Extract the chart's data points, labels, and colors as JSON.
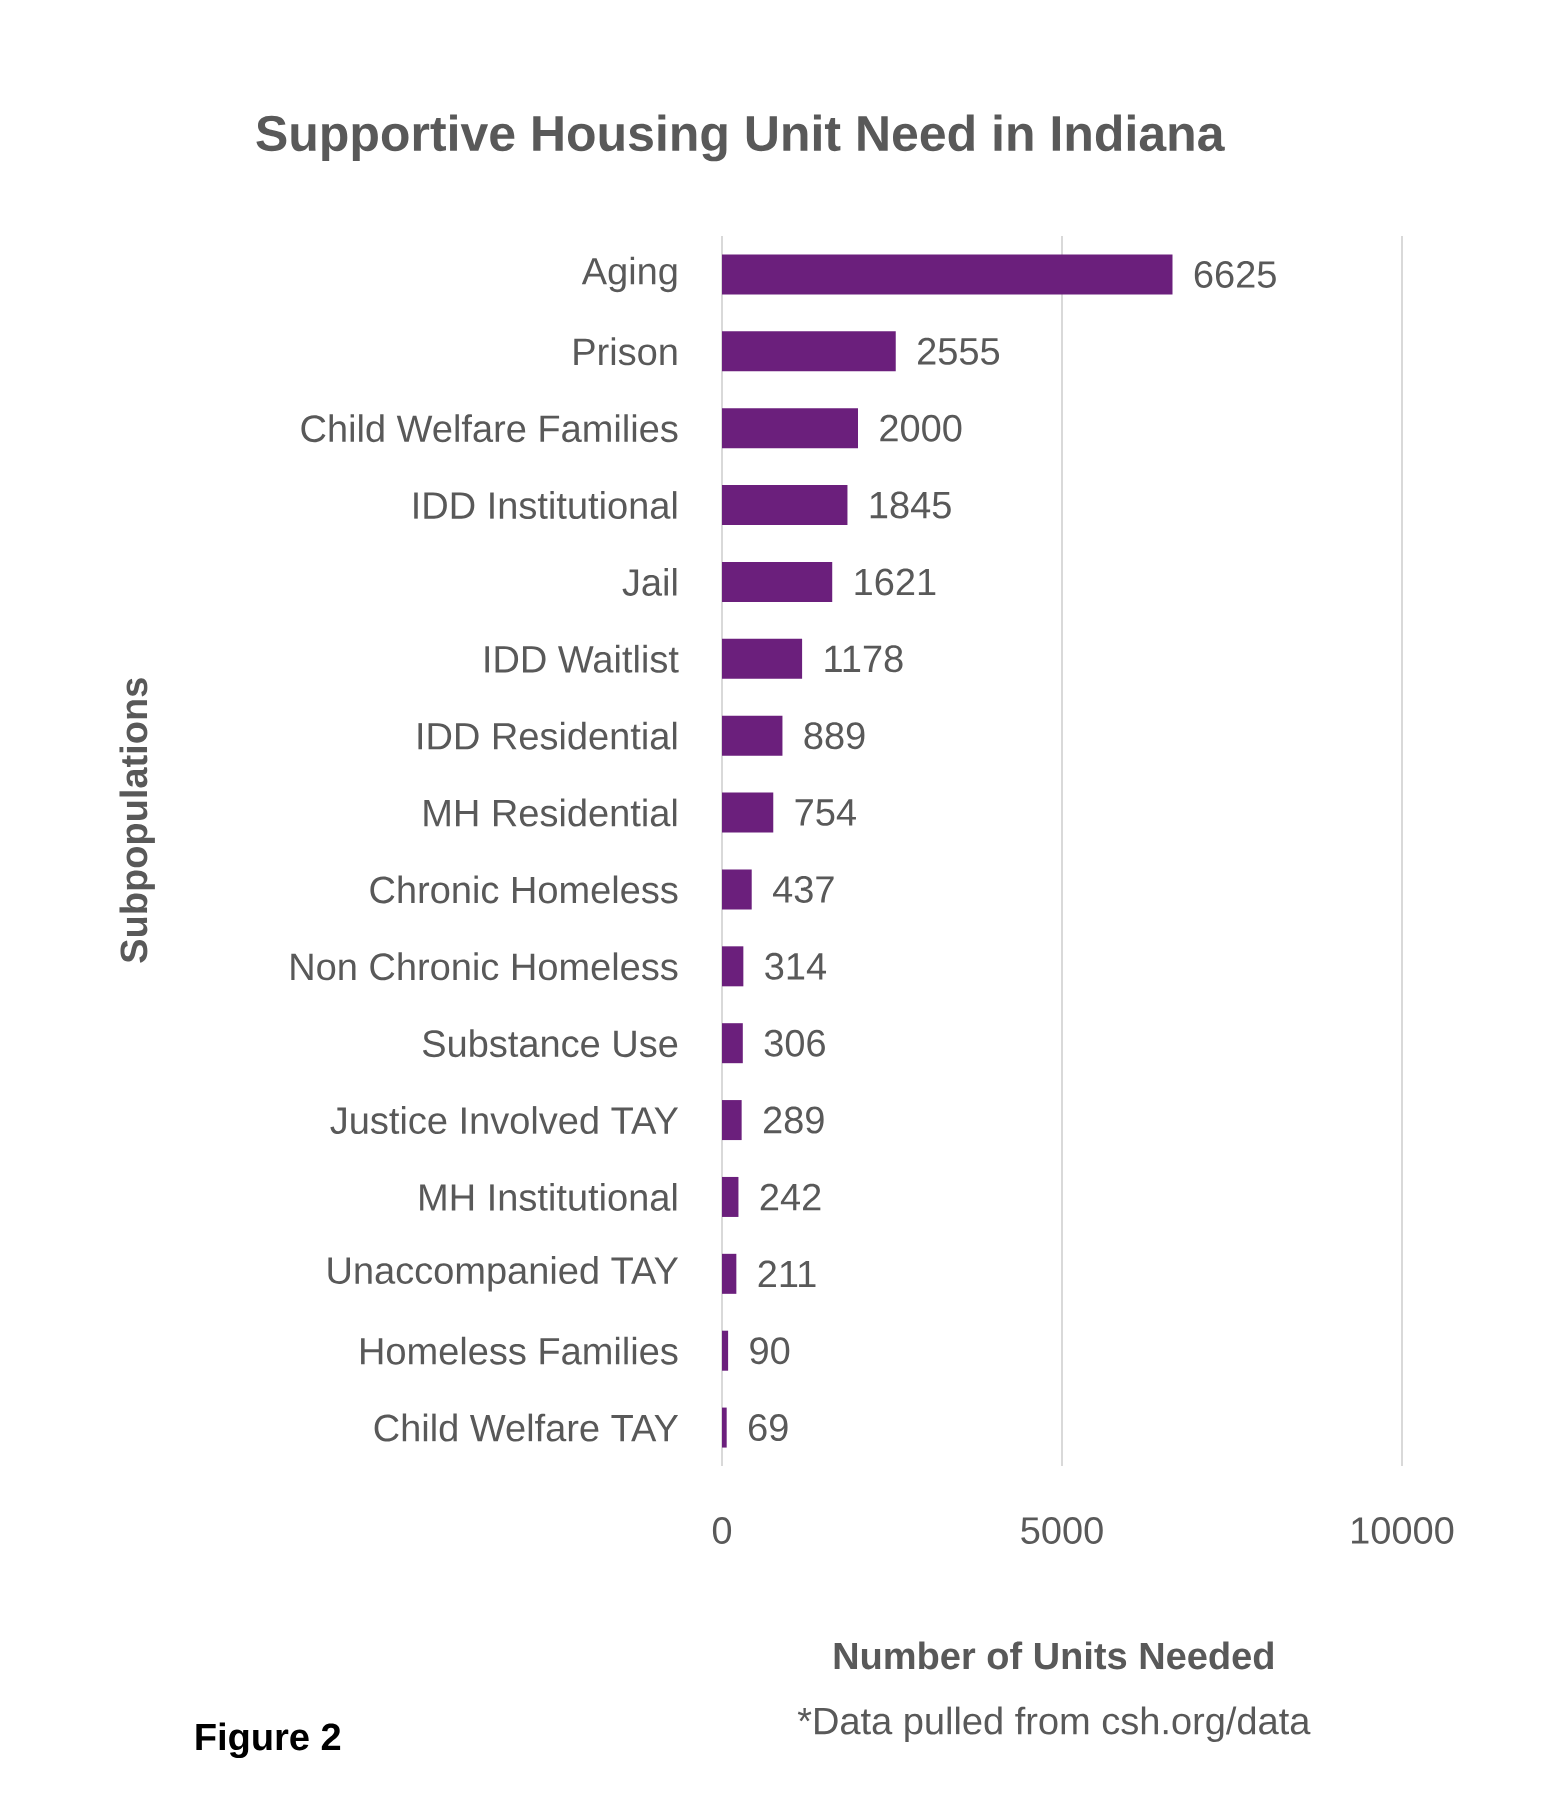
{
  "chart_data": {
    "type": "bar",
    "orientation": "horizontal",
    "title": "Supportive Housing Unit Need in Indiana",
    "xlabel": "Number of Units Needed",
    "ylabel": "Subpopulations",
    "categories": [
      "Aging",
      "Prison",
      "Child Welfare Families",
      "IDD Institutional",
      "Jail",
      "IDD Waitlist",
      "IDD Residential",
      "MH Residential",
      "Chronic Homeless",
      "Non Chronic Homeless",
      "Substance Use",
      "Justice Involved TAY",
      "MH Institutional",
      "Unaccompanied TAY",
      "Homeless Families",
      "Child Welfare TAY"
    ],
    "values": [
      6625,
      2555,
      2000,
      1845,
      1621,
      1178,
      889,
      754,
      437,
      314,
      306,
      289,
      242,
      211,
      90,
      69
    ],
    "color": "#6b1f7c",
    "xlim": [
      0,
      10000
    ],
    "xticks": [
      0,
      5000,
      10000
    ],
    "grid": "x",
    "data_labels": true,
    "annotations": [
      "*Data pulled from csh.org/data",
      "Figure 2"
    ]
  }
}
